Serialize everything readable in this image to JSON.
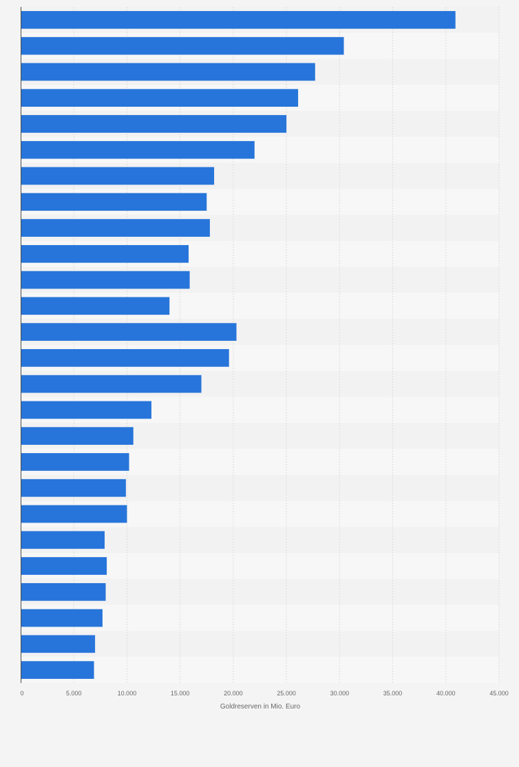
{
  "chart_data": {
    "type": "bar",
    "orientation": "horizontal",
    "values": [
      40900,
      30400,
      27700,
      26100,
      25000,
      22000,
      18200,
      17500,
      17800,
      15800,
      15900,
      14000,
      20300,
      19600,
      17000,
      12300,
      10600,
      10200,
      9900,
      10000,
      7900,
      8100,
      8000,
      7700,
      7000,
      6900
    ],
    "xlabel": "Goldreserven in Mio. Euro",
    "xlim": [
      0,
      45000
    ],
    "xticks": [
      0,
      5000,
      10000,
      15000,
      20000,
      25000,
      30000,
      35000,
      40000,
      45000
    ],
    "xtick_labels": [
      "0",
      "5.000",
      "10.000",
      "15.000",
      "20.000",
      "25.000",
      "30.000",
      "35.000",
      "40.000",
      "45.000"
    ],
    "grid": true,
    "bar_color": "#2775da",
    "band_colors": [
      "#f2f2f2",
      "#f7f7f7"
    ],
    "background": "#f4f4f4"
  }
}
